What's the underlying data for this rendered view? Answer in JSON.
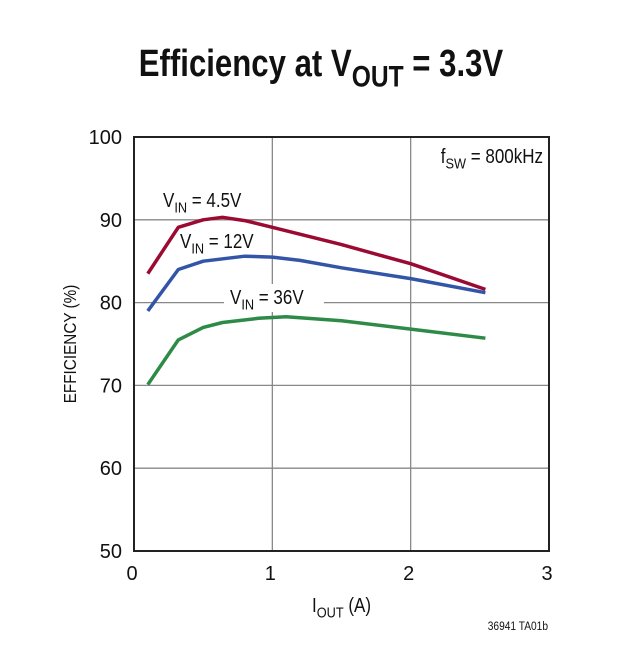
{
  "chart_data": {
    "type": "line",
    "title": {
      "main": "Efficiency at V",
      "sub": "OUT",
      "rest": " = 3.3V"
    },
    "xlabel": {
      "main": "I",
      "sub": "OUT",
      "rest": " (A)"
    },
    "ylabel": "EFFICIENCY (%)",
    "xlim": [
      0,
      3
    ],
    "ylim": [
      50,
      100
    ],
    "xticks": [
      "0",
      "1",
      "2",
      "3"
    ],
    "yticks": [
      "50",
      "60",
      "70",
      "80",
      "90",
      "100"
    ],
    "grid": true,
    "annotation": {
      "main": "f",
      "sub": "SW",
      "rest": " = 800kHz"
    },
    "footnote": "36941 TA01b",
    "series": [
      {
        "name": {
          "main": "V",
          "sub": "IN",
          "rest": " = 4.5V"
        },
        "color": "#9b0a32",
        "x": [
          0.1,
          0.32,
          0.5,
          0.64,
          0.8,
          1.0,
          1.5,
          2.0,
          2.54
        ],
        "y": [
          83.5,
          89.1,
          90.0,
          90.3,
          89.9,
          89.1,
          87.0,
          84.7,
          81.6
        ]
      },
      {
        "name": {
          "main": "V",
          "sub": "IN",
          "rest": " = 12V"
        },
        "color": "#3355a8",
        "x": [
          0.1,
          0.32,
          0.5,
          0.8,
          1.0,
          1.2,
          1.5,
          2.0,
          2.54
        ],
        "y": [
          79.0,
          84.0,
          85.0,
          85.6,
          85.5,
          85.1,
          84.2,
          82.9,
          81.2
        ]
      },
      {
        "name": {
          "main": "V",
          "sub": "IN",
          "rest": " = 36V"
        },
        "color": "#2e8b47",
        "x": [
          0.1,
          0.32,
          0.5,
          0.64,
          0.9,
          1.1,
          1.5,
          2.0,
          2.54
        ],
        "y": [
          70.1,
          75.5,
          77.0,
          77.6,
          78.1,
          78.3,
          77.8,
          76.8,
          75.7
        ]
      }
    ]
  }
}
